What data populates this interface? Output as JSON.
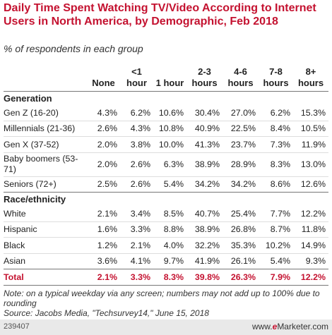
{
  "chart_data": {
    "type": "table",
    "title": "Daily Time Spent Watching TV/Video According to Internet Users in North America, by Demographic, Feb 2018",
    "subtitle": "% of respondents in each group",
    "columns": [
      "None",
      "<1 hour",
      "1 hour",
      "2-3 hours",
      "4-6 hours",
      "7-8 hours",
      "8+ hours"
    ],
    "groups": [
      {
        "name": "Generation",
        "rows": [
          {
            "label": "Gen Z (16-20)",
            "values": [
              "4.3%",
              "6.2%",
              "10.6%",
              "30.4%",
              "27.0%",
              "6.2%",
              "15.3%"
            ]
          },
          {
            "label": "Millennials (21-36)",
            "values": [
              "2.6%",
              "4.3%",
              "10.8%",
              "40.9%",
              "22.5%",
              "8.4%",
              "10.5%"
            ]
          },
          {
            "label": "Gen X (37-52)",
            "values": [
              "2.0%",
              "3.8%",
              "10.0%",
              "41.3%",
              "23.7%",
              "7.3%",
              "11.9%"
            ]
          },
          {
            "label": "Baby boomers (53-71)",
            "values": [
              "2.0%",
              "2.6%",
              "6.3%",
              "38.9%",
              "28.9%",
              "8.3%",
              "13.0%"
            ]
          },
          {
            "label": "Seniors (72+)",
            "values": [
              "2.5%",
              "2.6%",
              "5.4%",
              "34.2%",
              "34.2%",
              "8.6%",
              "12.6%"
            ]
          }
        ]
      },
      {
        "name": "Race/ethnicity",
        "rows": [
          {
            "label": "White",
            "values": [
              "2.1%",
              "3.4%",
              "8.5%",
              "40.7%",
              "25.4%",
              "7.7%",
              "12.2%"
            ]
          },
          {
            "label": "Hispanic",
            "values": [
              "1.6%",
              "3.3%",
              "8.8%",
              "38.9%",
              "26.8%",
              "8.7%",
              "11.8%"
            ]
          },
          {
            "label": "Black",
            "values": [
              "1.2%",
              "2.1%",
              "4.0%",
              "32.2%",
              "35.3%",
              "10.2%",
              "14.9%"
            ]
          },
          {
            "label": "Asian",
            "values": [
              "3.6%",
              "4.1%",
              "9.7%",
              "41.9%",
              "26.1%",
              "5.4%",
              "9.3%"
            ]
          }
        ]
      }
    ],
    "total": {
      "label": "Total",
      "values": [
        "2.1%",
        "3.3%",
        "8.3%",
        "39.8%",
        "26.3%",
        "7.9%",
        "12.2%"
      ]
    }
  },
  "note": "Note: on a typical weekday via any screen; numbers may not add up to 100% due to rounding",
  "source": "Source: Jacobs Media, \"Techsurvey14,\" June 15, 2018",
  "footer": {
    "code": "239407",
    "brand_prefix": "www.",
    "brand_e": "e",
    "brand_rest": "Marketer.com"
  },
  "colors": {
    "accent": "#c41230",
    "text": "#222222",
    "footer_bg": "#e9e9e9"
  }
}
